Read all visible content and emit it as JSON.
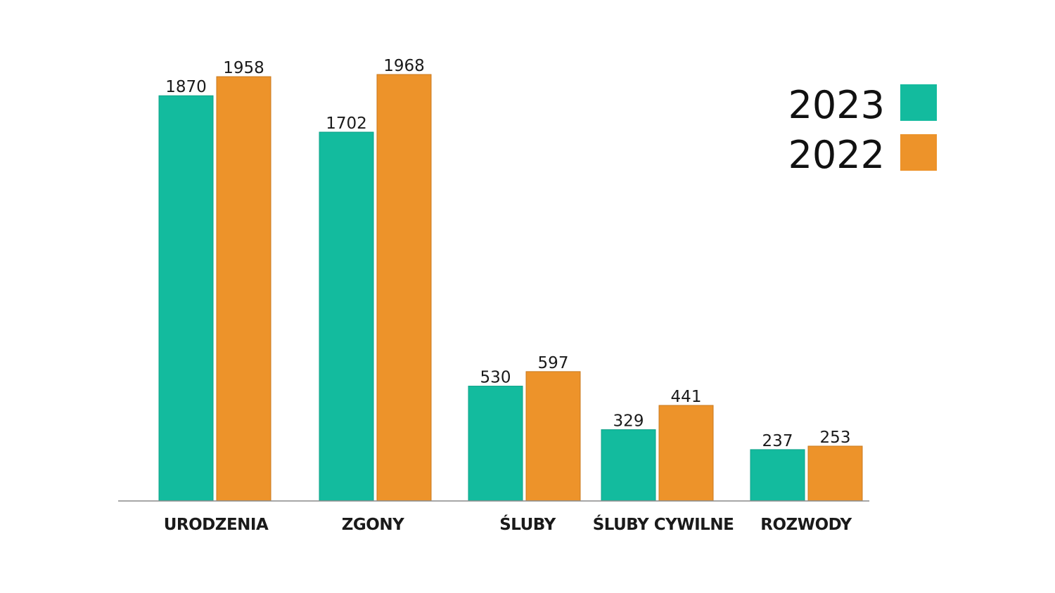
{
  "chart_data": {
    "type": "bar",
    "categories": [
      "URODZENIA",
      "ZGONY",
      "ŚLUBY",
      "ŚLUBY CYWILNE",
      "ROZWODY"
    ],
    "series": [
      {
        "name": "2023",
        "color": "#13bb9e",
        "values": [
          1870,
          1702,
          530,
          329,
          237
        ]
      },
      {
        "name": "2022",
        "color": "#ed932a",
        "values": [
          1958,
          1968,
          597,
          441,
          253
        ]
      }
    ],
    "title": "",
    "xlabel": "",
    "ylabel": "",
    "ylim": [
      0,
      1968
    ],
    "grid": false,
    "legend_position": "top-right",
    "data_labels": true
  }
}
